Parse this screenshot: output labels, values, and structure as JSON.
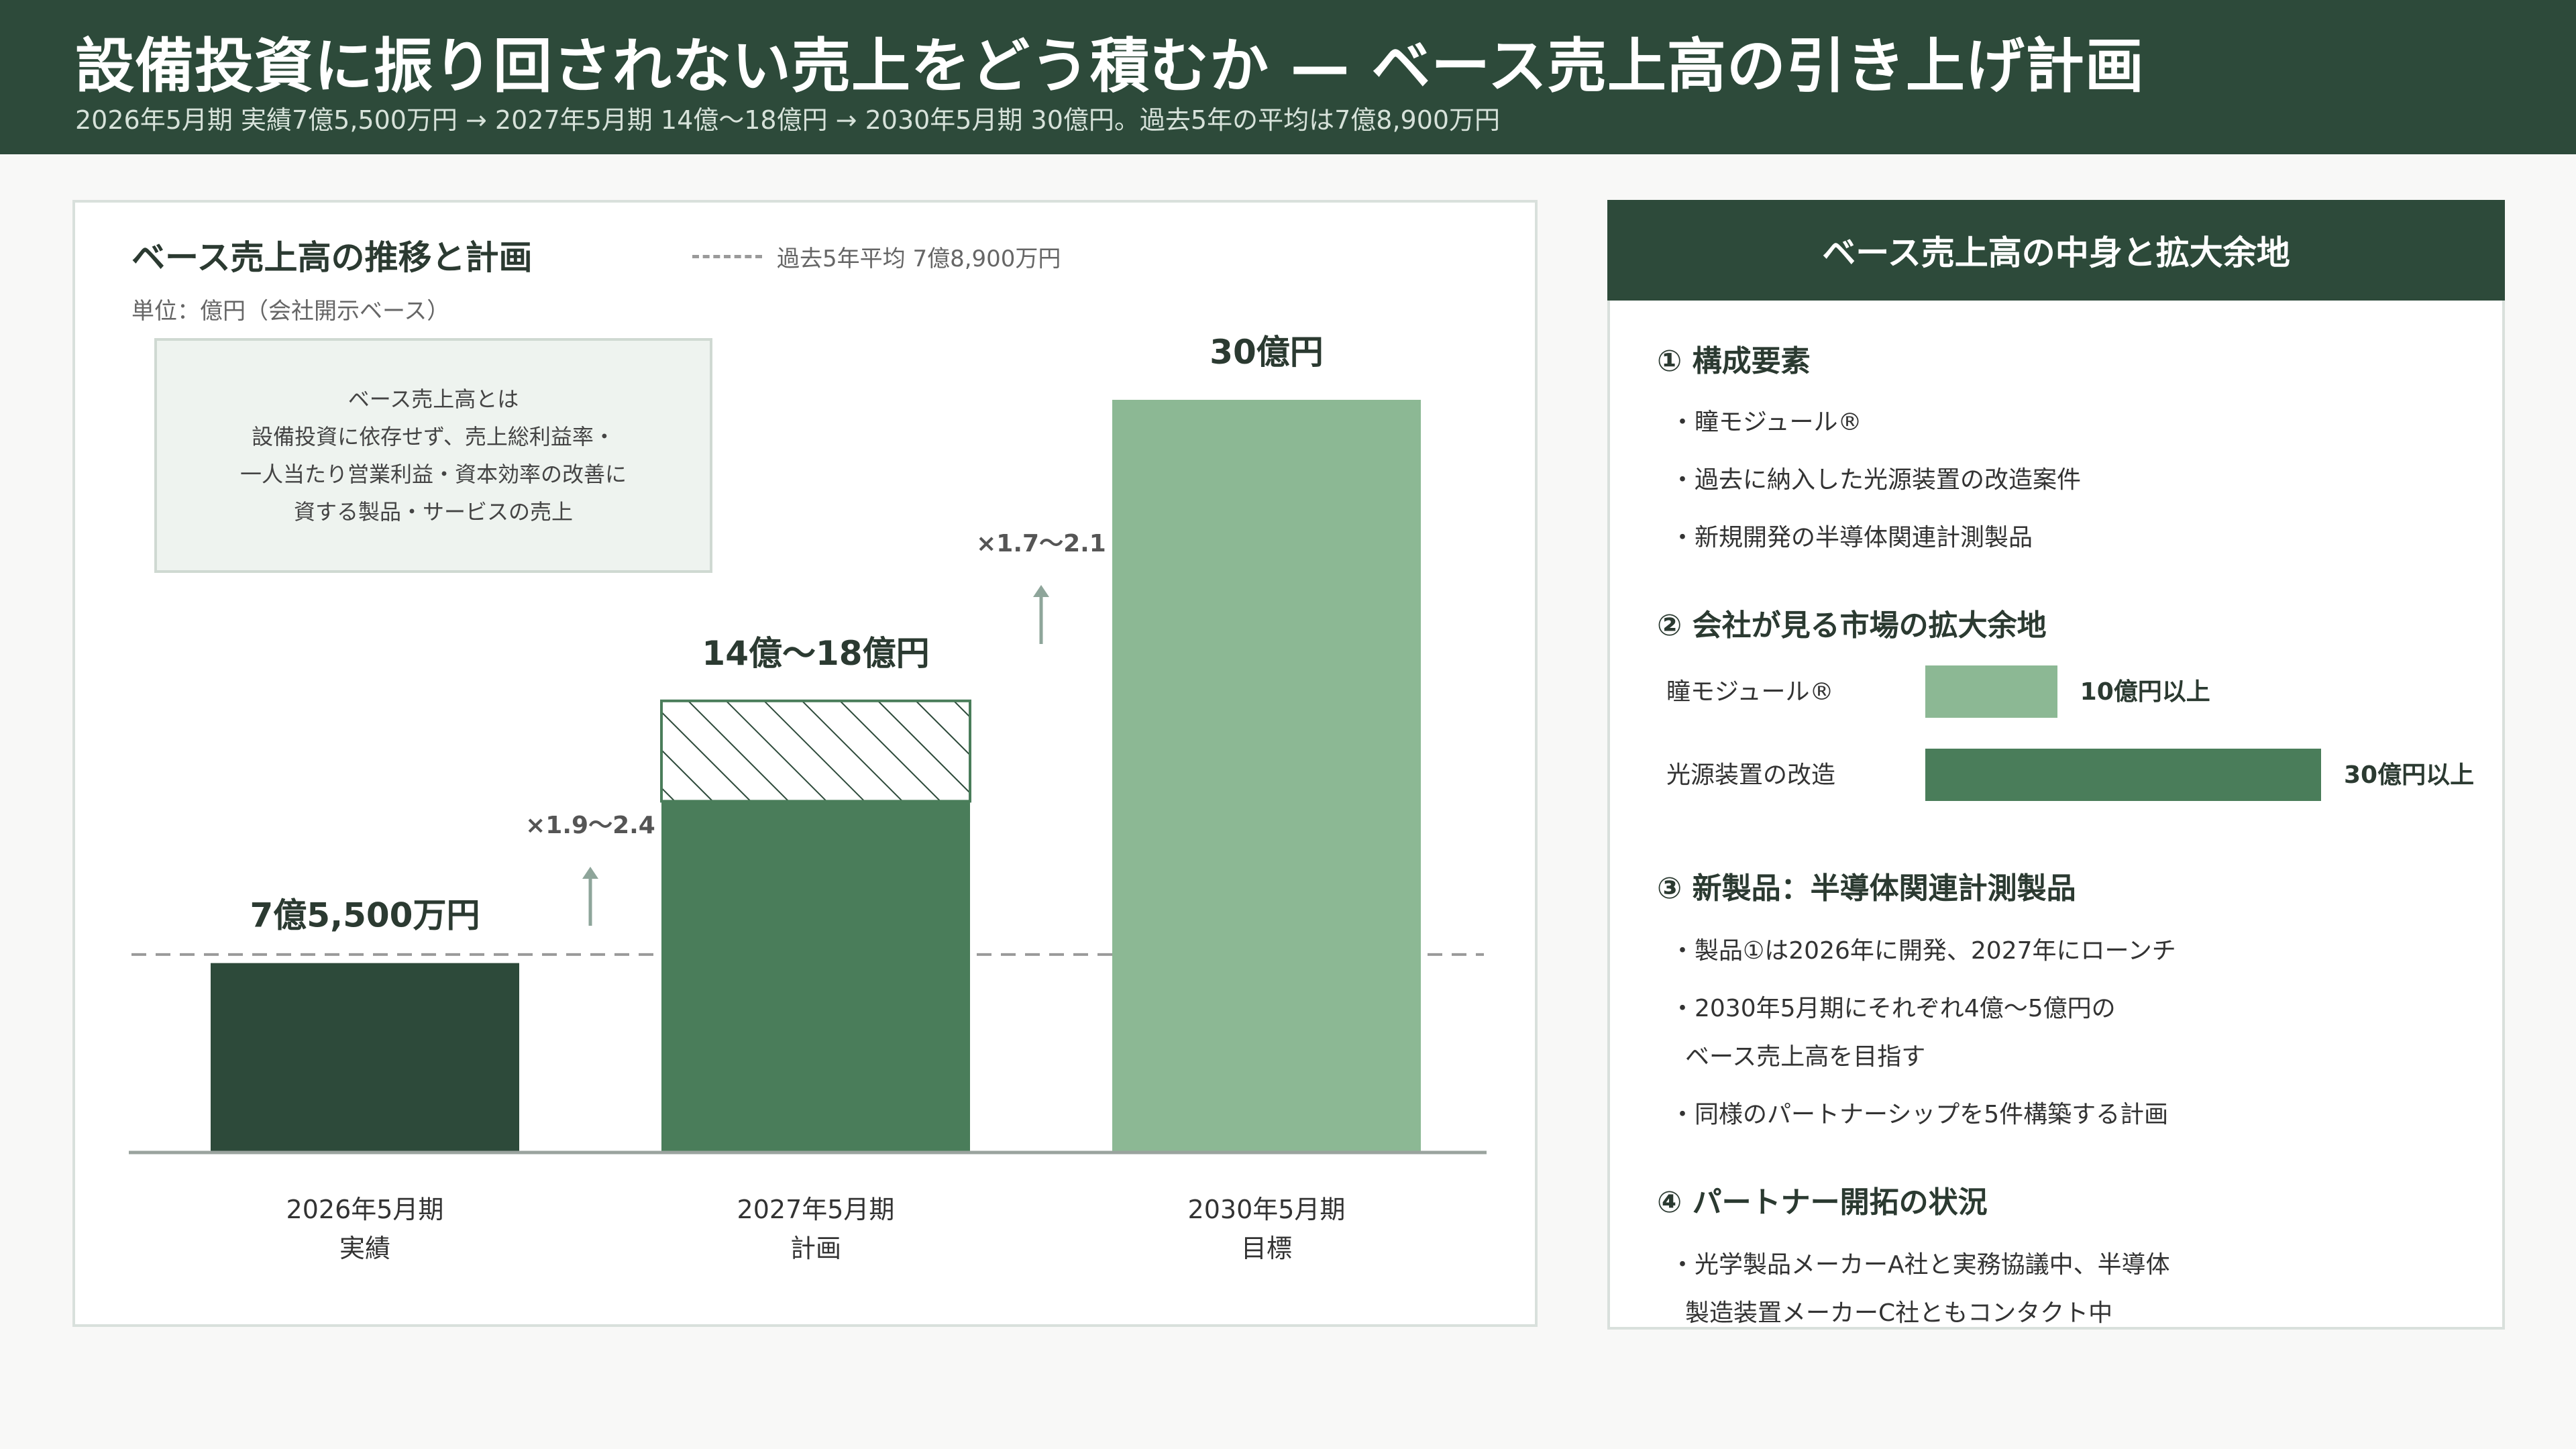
{
  "header": {
    "title": "設備投資に振り回されない売上をどう積むか — ベース売上高の引き上げ計画",
    "subtitle": "2026年5月期 実績7億5,500万円 → 2027年5月期 14億〜18億円 → 2030年5月期 30億円。過去5年の平均は7億8,900万円"
  },
  "chart_panel": {
    "title": "ベース売上高の推移と計画",
    "unit": "単位：億円（会社開示ベース）",
    "legend_avg": "過去5年平均 7億8,900万円",
    "note_lines": [
      "ベース売上高とは",
      "設備投資に依存せず、売上総利益率・",
      "一人当たり営業利益・資本効率の改善に",
      "資する製品・サービスの売上"
    ]
  },
  "chart_data": {
    "type": "bar",
    "ylabel": "",
    "unit": "億円",
    "ylim": [
      0,
      32
    ],
    "categories": [
      {
        "period": "2026年5月期",
        "label": "実績"
      },
      {
        "period": "2027年5月期",
        "label": "計画"
      },
      {
        "period": "2030年5月期",
        "label": "目標"
      }
    ],
    "bars": [
      {
        "value": 7.55,
        "value_label": "7億5,500万円",
        "color": "#2d4a3a"
      },
      {
        "value": 14,
        "range_high": 18,
        "value_label": "14億〜18億円",
        "color": "#4a7d5a"
      },
      {
        "value": 30,
        "value_label": "30億円",
        "color": "#8cb894"
      }
    ],
    "average_line": {
      "value": 7.89
    },
    "growth_annotations": [
      "×1.9〜2.4",
      "×1.7〜2.1"
    ],
    "grid": false
  },
  "side": {
    "title": "ベース売上高の中身と拡大余地",
    "sec1": {
      "title": "① 構成要素",
      "items": [
        "・瞳モジュール®",
        "・過去に納入した光源装置の改造案件",
        "・新規開発の半導体関連計測製品"
      ]
    },
    "sec2": {
      "title": "② 会社が見る市場の拡大余地",
      "rows": [
        {
          "label": "瞳モジュール®",
          "value": 10,
          "value_label": "10億円以上",
          "color": "#8cb894"
        },
        {
          "label": "光源装置の改造",
          "value": 30,
          "value_label": "30億円以上",
          "color": "#4a7d5a"
        }
      ]
    },
    "sec3": {
      "title": "③ 新製品：半導体関連計測製品",
      "items": [
        "・製品①は2026年に開発、2027年にローンチ",
        "・2030年5月期にそれぞれ4億〜5億円の",
        "ベース売上高を目指す",
        "・同様のパートナーシップを5件構築する計画"
      ]
    },
    "sec4": {
      "title": "④ パートナー開拓の状況",
      "items": [
        "・光学製品メーカーA社と実務協議中、半導体",
        "製造装置メーカーC社ともコンタクト中"
      ]
    }
  }
}
